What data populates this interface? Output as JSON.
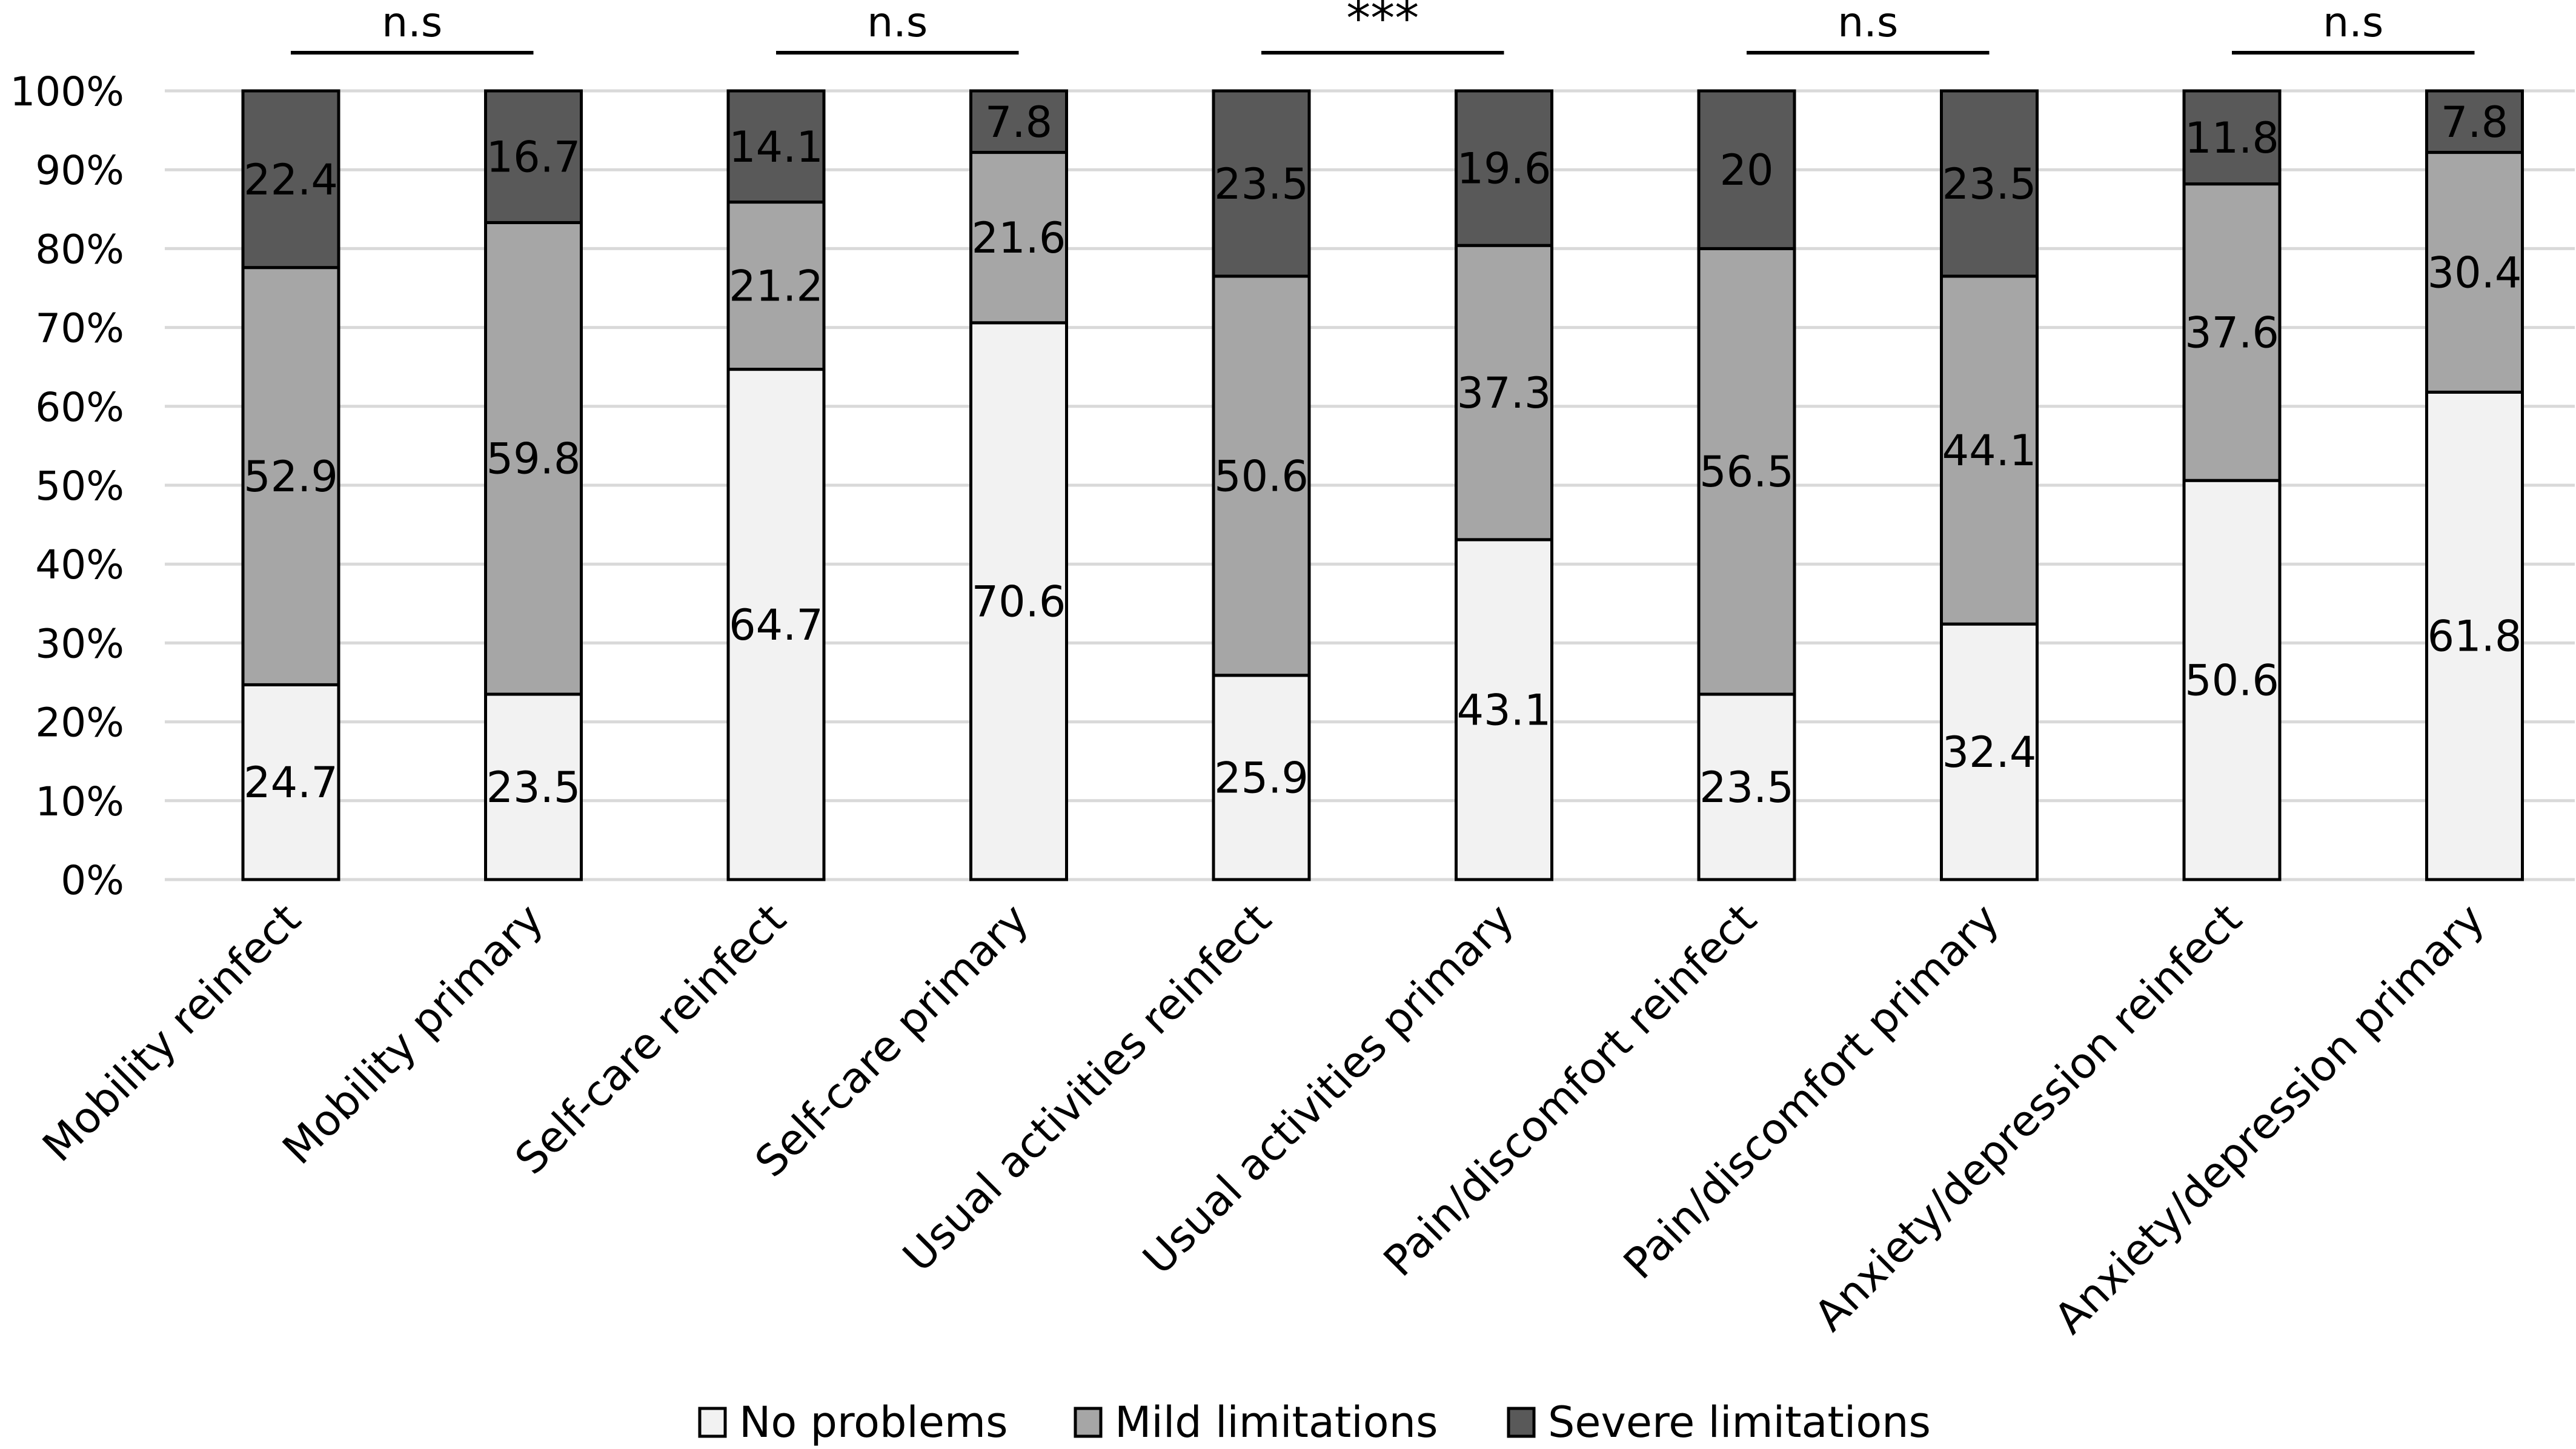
{
  "chart_data": {
    "type": "bar",
    "stacked": true,
    "categories": [
      "Mobility reinfect",
      "Mobility primary",
      "Self-care reinfect",
      "Self-care primary",
      "Usual activities reinfect",
      "Usual activities primary",
      "Pain/discomfort reinfect",
      "Pain/discomfort primary",
      "Anxiety/depression reinfect",
      "Anxiety/depression primary"
    ],
    "series": [
      {
        "name": "No problems",
        "color": "#f2f2f2",
        "values": [
          24.7,
          23.5,
          64.7,
          70.6,
          25.9,
          43.1,
          23.5,
          32.4,
          50.6,
          61.8
        ]
      },
      {
        "name": "Mild limitations",
        "color": "#a6a6a6",
        "values": [
          52.9,
          59.8,
          21.2,
          21.6,
          50.6,
          37.3,
          56.5,
          44.1,
          37.6,
          30.4
        ]
      },
      {
        "name": "Severe limitations",
        "color": "#595959",
        "values": [
          22.4,
          16.7,
          14.1,
          7.8,
          23.5,
          19.6,
          20.0,
          23.5,
          11.8,
          7.8
        ]
      }
    ],
    "ylim": [
      0,
      100
    ],
    "yticks": [
      "0%",
      "10%",
      "20%",
      "30%",
      "40%",
      "50%",
      "60%",
      "70%",
      "80%",
      "90%",
      "100%"
    ],
    "grid": true,
    "legend_position": "bottom",
    "significance": [
      "n.s",
      "n.s",
      "***",
      "n.s",
      "n.s"
    ],
    "title": "",
    "xlabel": "",
    "ylabel": ""
  }
}
